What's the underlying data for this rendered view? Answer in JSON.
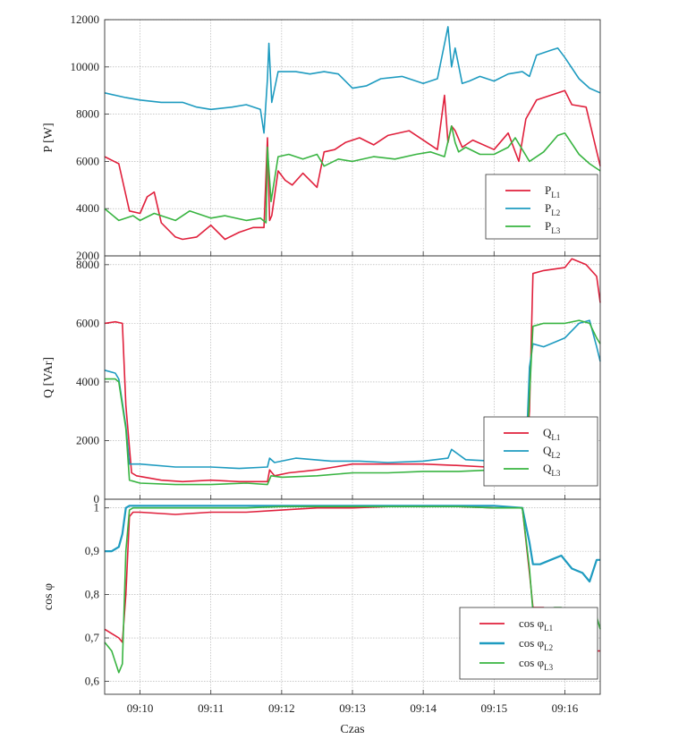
{
  "figure": {
    "xlabel": "Czas",
    "x_ticks": [
      "09:10",
      "09:11",
      "09:12",
      "09:13",
      "09:14",
      "09:15",
      "09:16"
    ]
  },
  "chart_data": [
    {
      "type": "line",
      "ylabel": "P [W]",
      "xlim": [
        9.5,
        16.5
      ],
      "ylim": [
        2000,
        12000
      ],
      "y_ticks": [
        2000,
        4000,
        6000,
        8000,
        10000,
        12000
      ],
      "grid": true,
      "legend_position": "bottom-right",
      "series": [
        {
          "label_main": "P",
          "label_sub": "L1",
          "color": "#e0203c",
          "x": [
            9.5,
            9.7,
            9.85,
            10.0,
            10.1,
            10.2,
            10.3,
            10.4,
            10.5,
            10.6,
            10.8,
            11.0,
            11.2,
            11.4,
            11.6,
            11.75,
            11.8,
            11.83,
            11.86,
            11.95,
            12.05,
            12.15,
            12.3,
            12.5,
            12.6,
            12.75,
            12.9,
            13.1,
            13.3,
            13.5,
            13.8,
            14.0,
            14.2,
            14.3,
            14.35,
            14.4,
            14.45,
            14.55,
            14.7,
            15.0,
            15.2,
            15.35,
            15.45,
            15.6,
            15.8,
            16.0,
            16.1,
            16.3,
            16.5
          ],
          "y": [
            6200,
            5900,
            3900,
            3800,
            4500,
            4700,
            3400,
            3100,
            2800,
            2700,
            2800,
            3300,
            2700,
            3000,
            3200,
            3200,
            7000,
            3500,
            3700,
            5600,
            5200,
            5000,
            5500,
            4900,
            6400,
            6500,
            6800,
            7000,
            6700,
            7100,
            7300,
            6900,
            6500,
            8800,
            6800,
            7500,
            7300,
            6600,
            6900,
            6500,
            7200,
            6000,
            7800,
            8600,
            8800,
            9000,
            8400,
            8300,
            5800
          ]
        },
        {
          "label_main": "P",
          "label_sub": "L2",
          "color": "#1e9bc0",
          "x": [
            9.5,
            9.8,
            10.0,
            10.3,
            10.6,
            10.8,
            11.0,
            11.3,
            11.5,
            11.7,
            11.75,
            11.8,
            11.82,
            11.86,
            11.95,
            12.2,
            12.4,
            12.6,
            12.8,
            13.0,
            13.2,
            13.4,
            13.7,
            14.0,
            14.2,
            14.35,
            14.4,
            14.45,
            14.55,
            14.65,
            14.8,
            15.0,
            15.2,
            15.4,
            15.5,
            15.6,
            15.8,
            15.9,
            16.0,
            16.2,
            16.35,
            16.5
          ],
          "y": [
            8900,
            8700,
            8600,
            8500,
            8500,
            8300,
            8200,
            8300,
            8400,
            8200,
            7200,
            9500,
            11000,
            8500,
            9800,
            9800,
            9700,
            9800,
            9700,
            9100,
            9200,
            9500,
            9600,
            9300,
            9500,
            11700,
            10000,
            10800,
            9300,
            9400,
            9600,
            9400,
            9700,
            9800,
            9600,
            10500,
            10700,
            10800,
            10400,
            9500,
            9100,
            8900
          ]
        },
        {
          "label_main": "P",
          "label_sub": "L3",
          "color": "#38b441",
          "x": [
            9.5,
            9.7,
            9.9,
            10.0,
            10.2,
            10.5,
            10.7,
            11.0,
            11.2,
            11.5,
            11.7,
            11.78,
            11.8,
            11.85,
            11.95,
            12.1,
            12.3,
            12.5,
            12.6,
            12.8,
            13.0,
            13.3,
            13.6,
            13.9,
            14.1,
            14.3,
            14.4,
            14.45,
            14.5,
            14.6,
            14.8,
            15.0,
            15.2,
            15.3,
            15.5,
            15.7,
            15.9,
            16.0,
            16.2,
            16.35,
            16.5
          ],
          "y": [
            4000,
            3500,
            3700,
            3500,
            3800,
            3500,
            3900,
            3600,
            3700,
            3500,
            3600,
            3400,
            6600,
            4300,
            6200,
            6300,
            6100,
            6300,
            5800,
            6100,
            6000,
            6200,
            6100,
            6300,
            6400,
            6200,
            7500,
            6800,
            6400,
            6600,
            6300,
            6300,
            6600,
            7000,
            6000,
            6400,
            7100,
            7200,
            6300,
            5900,
            5600
          ]
        }
      ]
    },
    {
      "type": "line",
      "ylabel": "Q [VAr]",
      "xlim": [
        9.5,
        16.5
      ],
      "ylim": [
        0,
        8300
      ],
      "y_ticks": [
        0,
        2000,
        4000,
        6000,
        8000
      ],
      "grid": true,
      "legend_position": "bottom-right",
      "series": [
        {
          "label_main": "Q",
          "label_sub": "L1",
          "color": "#e0203c",
          "x": [
            9.5,
            9.65,
            9.75,
            9.8,
            9.88,
            9.95,
            10.3,
            10.6,
            11.0,
            11.4,
            11.8,
            11.83,
            11.9,
            12.1,
            12.5,
            12.75,
            13.0,
            13.5,
            14.0,
            14.5,
            14.9,
            15.2,
            15.45,
            15.5,
            15.55,
            15.7,
            16.0,
            16.1,
            16.3,
            16.45,
            16.5
          ],
          "y": [
            6000,
            6050,
            6000,
            3200,
            900,
            800,
            650,
            600,
            650,
            600,
            600,
            1000,
            800,
            900,
            1000,
            1100,
            1200,
            1200,
            1200,
            1150,
            1100,
            1150,
            1300,
            3000,
            7700,
            7800,
            7900,
            8200,
            8000,
            7600,
            6700
          ]
        },
        {
          "label_main": "Q",
          "label_sub": "L2",
          "color": "#1e9bc0",
          "x": [
            9.5,
            9.65,
            9.7,
            9.8,
            9.85,
            10.0,
            10.5,
            11.0,
            11.4,
            11.8,
            11.83,
            11.9,
            12.2,
            12.7,
            13.1,
            13.5,
            14.0,
            14.35,
            14.4,
            14.6,
            15.0,
            15.45,
            15.5,
            15.55,
            15.7,
            16.0,
            16.2,
            16.35,
            16.45,
            16.5
          ],
          "y": [
            4400,
            4300,
            4100,
            2500,
            1200,
            1200,
            1100,
            1100,
            1050,
            1100,
            1400,
            1250,
            1400,
            1300,
            1300,
            1250,
            1300,
            1400,
            1700,
            1350,
            1300,
            1400,
            4500,
            5300,
            5200,
            5500,
            6000,
            6100,
            5200,
            4700
          ]
        },
        {
          "label_main": "Q",
          "label_sub": "L3",
          "color": "#38b441",
          "x": [
            9.5,
            9.65,
            9.7,
            9.8,
            9.85,
            10.0,
            10.5,
            11.0,
            11.5,
            11.8,
            11.85,
            12.0,
            12.5,
            13.0,
            13.5,
            14.0,
            14.5,
            15.0,
            15.45,
            15.5,
            15.55,
            15.7,
            16.0,
            16.2,
            16.35,
            16.45,
            16.5
          ],
          "y": [
            4100,
            4100,
            4000,
            2400,
            650,
            550,
            500,
            500,
            550,
            500,
            800,
            750,
            800,
            900,
            900,
            950,
            950,
            1000,
            1000,
            3500,
            5900,
            6000,
            6000,
            6100,
            6000,
            5500,
            5300
          ]
        }
      ]
    },
    {
      "type": "line",
      "ylabel": "cos φ",
      "xlim": [
        9.5,
        16.5
      ],
      "ylim": [
        0.57,
        1.02
      ],
      "y_ticks": [
        0.6,
        0.7,
        0.8,
        0.9,
        1.0
      ],
      "y_tick_labels": [
        "0,6",
        "0,7",
        "0,8",
        "0,9",
        "1"
      ],
      "grid": true,
      "legend_position": "bottom-right",
      "series": [
        {
          "label_main": "cos φ",
          "label_sub": "L1",
          "color": "#e0203c",
          "x": [
            9.5,
            9.6,
            9.7,
            9.75,
            9.8,
            9.85,
            9.9,
            10.0,
            10.5,
            11.0,
            11.5,
            12.0,
            12.5,
            13.0,
            13.5,
            14.0,
            14.5,
            15.0,
            15.4,
            15.5,
            15.55,
            15.7,
            15.75,
            15.85,
            15.95,
            16.1,
            16.25,
            16.35,
            16.5
          ],
          "y": [
            0.72,
            0.71,
            0.7,
            0.69,
            0.8,
            0.98,
            0.99,
            0.99,
            0.985,
            0.99,
            0.99,
            0.995,
            1.0,
            1.0,
            1.003,
            1.003,
            1.003,
            1.0,
            1.0,
            0.85,
            0.77,
            0.77,
            0.75,
            0.76,
            0.75,
            0.74,
            0.7,
            0.67,
            0.67
          ]
        },
        {
          "label_main": "cos φ",
          "label_sub": "L2",
          "color": "#1e9bc0",
          "x": [
            9.5,
            9.6,
            9.7,
            9.75,
            9.8,
            9.85,
            9.9,
            10.0,
            10.5,
            11.0,
            11.5,
            12.0,
            12.5,
            13.0,
            13.5,
            14.0,
            14.5,
            15.0,
            15.4,
            15.5,
            15.55,
            15.65,
            15.8,
            15.95,
            16.1,
            16.25,
            16.35,
            16.45,
            16.5
          ],
          "y": [
            0.9,
            0.9,
            0.91,
            0.94,
            1.0,
            1.005,
            1.005,
            1.005,
            1.005,
            1.005,
            1.005,
            1.005,
            1.005,
            1.005,
            1.005,
            1.005,
            1.005,
            1.005,
            1.0,
            0.92,
            0.87,
            0.87,
            0.88,
            0.89,
            0.86,
            0.85,
            0.83,
            0.88,
            0.88
          ]
        },
        {
          "label_main": "cos φ",
          "label_sub": "L3",
          "color": "#38b441",
          "x": [
            9.5,
            9.6,
            9.7,
            9.75,
            9.8,
            9.85,
            9.9,
            10.0,
            10.5,
            11.0,
            11.5,
            12.0,
            12.5,
            13.0,
            13.5,
            14.0,
            14.5,
            15.0,
            15.4,
            15.5,
            15.55,
            15.7,
            15.85,
            15.95,
            16.1,
            16.25,
            16.35,
            16.45,
            16.5
          ],
          "y": [
            0.69,
            0.67,
            0.62,
            0.64,
            0.9,
            0.995,
            1.0,
            1.0,
            1.0,
            1.0,
            1.0,
            1.003,
            1.003,
            1.003,
            1.003,
            1.003,
            1.003,
            1.0,
            1.0,
            0.86,
            0.76,
            0.76,
            0.77,
            0.77,
            0.74,
            0.7,
            0.7,
            0.75,
            0.72
          ]
        }
      ]
    }
  ]
}
